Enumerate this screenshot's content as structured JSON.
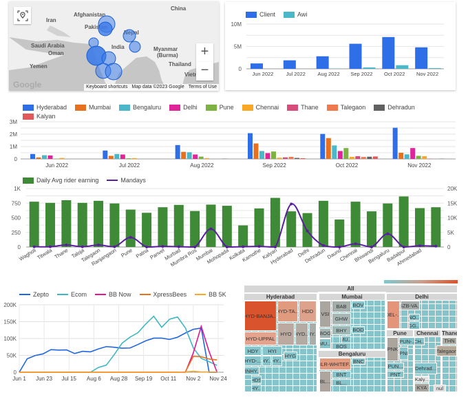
{
  "map": {
    "labels": [
      "China",
      "Afghanistan",
      "Iran",
      "Pakistan",
      "Nepal",
      "Saudi Arabia",
      "India",
      "Myanmar",
      "(Burma)",
      "Oman",
      "Yemen",
      "Thailand",
      "Vietnam"
    ],
    "footer": {
      "shortcuts": "Keyboard shortcuts",
      "mapdata": "Map data ©2023 Google",
      "terms": "Terms of Use"
    },
    "logo": "Google",
    "zoom_in": "+",
    "zoom_out": "−",
    "locate_icon": "map-pin-icon",
    "bubble_color": "#4a7fe8"
  },
  "chart_data": [
    {
      "type": "bar",
      "categories": [
        "Jun 2022",
        "Jul 2022",
        "Aug 2022",
        "Sep 2022",
        "Oct 2022",
        "Nov 2022"
      ],
      "series": [
        {
          "name": "Client",
          "color": "#2e6ee6",
          "values": [
            1200000,
            1900000,
            2800000,
            5600000,
            7100000,
            4800000
          ]
        },
        {
          "name": "Awi",
          "color": "#4ab8c9",
          "values": [
            0,
            0,
            50000,
            300000,
            800000,
            150000
          ]
        }
      ],
      "yticks": [
        "0",
        "5M",
        "10M"
      ],
      "ylim": [
        0,
        10000000
      ],
      "legend": "top-left",
      "grid": true
    },
    {
      "type": "bar",
      "categories": [
        "Jun 2022",
        "Jul 2022",
        "Aug 2022",
        "Sep 2022",
        "Oct 2022",
        "Nov 2022"
      ],
      "series": [
        {
          "name": "Hyderabad",
          "color": "#2e6ee6",
          "values": [
            400000,
            680000,
            1120000,
            2080000,
            2020000,
            2520000
          ]
        },
        {
          "name": "Mumbai",
          "color": "#e8711f",
          "values": [
            120000,
            250000,
            570000,
            1250000,
            1680000,
            500000
          ]
        },
        {
          "name": "Bengaluru",
          "color": "#4ab8c9",
          "values": [
            300000,
            400000,
            540000,
            640000,
            1090000,
            370000
          ]
        },
        {
          "name": "Delhi",
          "color": "#e0259a",
          "values": [
            280000,
            360000,
            360000,
            470000,
            640000,
            880000
          ]
        },
        {
          "name": "Pune",
          "color": "#7cb342",
          "values": [
            20000,
            50000,
            190000,
            600000,
            880000,
            250000
          ]
        },
        {
          "name": "Chennai",
          "color": "#f9a825",
          "values": [
            80000,
            70000,
            70000,
            100000,
            170000,
            220000
          ]
        },
        {
          "name": "Thane",
          "color": "#d84c7c",
          "values": [
            0,
            0,
            0,
            130000,
            220000,
            20000
          ]
        },
        {
          "name": "Talegaon",
          "color": "#f0784f",
          "values": [
            0,
            0,
            0,
            170000,
            160000,
            0
          ]
        },
        {
          "name": "Dehradun",
          "color": "#616161",
          "values": [
            0,
            0,
            20000,
            80000,
            180000,
            20000
          ]
        },
        {
          "name": "Kalyan",
          "color": "#e15a5a",
          "values": [
            0,
            0,
            0,
            60000,
            200000,
            0
          ]
        }
      ],
      "yticks": [
        "0",
        "1M",
        "2M",
        "3M"
      ],
      "ylim": [
        0,
        3000000
      ],
      "legend": "top",
      "grid": true
    },
    {
      "type": "bar",
      "categories": [
        "Wagholi",
        "Titwala",
        "Thane",
        "Taloja",
        "Talegaon",
        "Ranjangaon",
        "Pune",
        "Patna",
        "Panvel",
        "Murbad",
        "Mumbra Ros",
        "Mumbai",
        "Mohopada",
        "Kolkata",
        "Kamothe",
        "Kalyan",
        "Hyderabad",
        "Delhi",
        "Dehradun",
        "Daund",
        "Chennai",
        "Bhiwandi",
        "Bengaluru",
        "Badalpur",
        "Ahmedabad",
        ""
      ],
      "series": [
        {
          "name": "Daily Avg rider earning",
          "color": "#3f8a36",
          "axis": "left",
          "values": [
            775,
            755,
            800,
            755,
            790,
            745,
            640,
            585,
            680,
            720,
            615,
            725,
            705,
            370,
            660,
            840,
            610,
            580,
            790,
            470,
            775,
            610,
            745,
            865,
            665,
            680
          ]
        },
        {
          "name": "Mandays",
          "color": "#5b1f9e",
          "axis": "right",
          "type": "line",
          "values": [
            100,
            100,
            700,
            100,
            700,
            100,
            3300,
            0,
            200,
            100,
            0,
            6200,
            0,
            100,
            200,
            0,
            14700,
            5500,
            500,
            0,
            1100,
            0,
            4500,
            0,
            400,
            300
          ]
        }
      ],
      "yticks_left": [
        "0",
        "250",
        "500",
        "750",
        "1K"
      ],
      "ylim_left": [
        0,
        1000
      ],
      "yticks_right": [
        "0",
        "5K",
        "10K",
        "15K",
        "20K"
      ],
      "ylim_right": [
        0,
        20000
      ],
      "legend": "top-left",
      "grid": true
    },
    {
      "type": "line",
      "x": [
        "Jun 1",
        "Jun 8",
        "Jun 15",
        "Jun 22",
        "Jun 29",
        "Jul 6",
        "Jul 13",
        "Jul 20",
        "Jul 27",
        "Aug 3",
        "Aug 10",
        "Aug 17",
        "Aug 24",
        "Aug 31",
        "Sep 7",
        "Sep 14",
        "Sep 21",
        "Sep 28",
        "Oct 5",
        "Oct 12",
        "Oct 19",
        "Oct 26",
        "Nov 2",
        "Nov 9",
        "Nov 16",
        "Nov 23"
      ],
      "series": [
        {
          "name": "Zepto",
          "color": "#1f66e0",
          "values": [
            0,
            45000,
            55000,
            55000,
            62000,
            60000,
            65000,
            60000,
            68000,
            62000,
            65000,
            70000,
            72000,
            75000,
            78000,
            85000,
            90000,
            95000,
            98000,
            100000,
            110000,
            120000,
            125000,
            125000,
            0,
            0
          ]
        },
        {
          "name": "Ecom",
          "color": "#3fb6c4",
          "values": [
            0,
            0,
            0,
            0,
            0,
            0,
            0,
            0,
            0,
            0,
            10000,
            15000,
            50000,
            90000,
            110000,
            120000,
            140000,
            160000,
            130000,
            160000,
            170000,
            135000,
            70000,
            35000,
            27000,
            22000
          ]
        },
        {
          "name": "BB Now",
          "color": "#e0168c",
          "values": [
            0,
            0,
            0,
            0,
            0,
            0,
            0,
            0,
            0,
            0,
            0,
            0,
            0,
            0,
            0,
            0,
            0,
            0,
            0,
            0,
            0,
            0,
            55000,
            130000,
            57000,
            0
          ]
        },
        {
          "name": "XpressBees",
          "color": "#e8711f",
          "values": [
            0,
            0,
            0,
            0,
            0,
            0,
            0,
            0,
            0,
            0,
            0,
            0,
            0,
            0,
            0,
            0,
            0,
            0,
            0,
            0,
            0,
            1000,
            45000,
            40000,
            35000,
            38000
          ]
        },
        {
          "name": "BB 5K",
          "color": "#f9a825",
          "values": [
            0,
            0,
            0,
            0,
            0,
            0,
            0,
            0,
            0,
            0,
            0,
            0,
            0,
            0,
            0,
            0,
            0,
            0,
            0,
            0,
            0,
            1000,
            3000,
            1000,
            1000,
            1000
          ]
        }
      ],
      "xticks": [
        "Jun 1",
        "Jun 23",
        "Jul 15",
        "Aug 6",
        "Aug 28",
        "Sep 19",
        "Oct 11",
        "Nov 2",
        "Nov 24"
      ],
      "yticks": [
        "0",
        "50K",
        "100K",
        "150K",
        "200K"
      ],
      "ylim": [
        0,
        200000
      ],
      "legend": "top",
      "grid": true
    }
  ],
  "treemap": {
    "root": "All",
    "groups": [
      "Hyderabad",
      "Mumbai",
      "Bengaluru",
      "Delhi",
      "Pune",
      "Chennai",
      "Thane"
    ],
    "cells": [
      "HYD-BANJA...",
      "HYD-TA...",
      "HDD",
      "HYD-UPPAL",
      "HYO",
      "HYD...",
      "HY...",
      "HDY",
      "HYI",
      "HYD-...",
      "HY...",
      "HY...",
      "BNHY...",
      "HDS",
      "HY...",
      "HYG",
      "VSI",
      "BAB",
      "GHW",
      "BOV",
      "BOG",
      "BHY",
      "MU...",
      "MU...",
      "BOS",
      "BOD",
      "BLR-WHITEF...",
      "BL...",
      "BNT",
      "BNC",
      "BL...",
      "DEL-...",
      "GZB-VA...",
      "NO...",
      "GG...",
      "PNK",
      "PUN-...",
      "PNI",
      "PUN...",
      "PNT",
      "CH...",
      "Dehrad...",
      "THN",
      "Talegaon",
      "Kaly...",
      "KYA",
      "nul"
    ],
    "color_scale": [
      "#7ec8d1",
      "#d9532c"
    ]
  }
}
